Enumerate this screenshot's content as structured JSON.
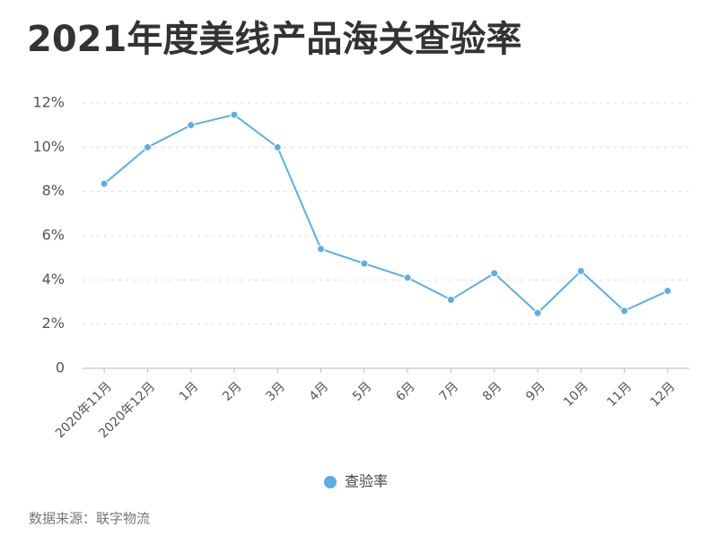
{
  "chart_data": {
    "type": "line",
    "title": "2021年度美线产品海关查验率",
    "categories": [
      "2020年11月",
      "2020年12月",
      "1月",
      "2月",
      "3月",
      "4月",
      "5月",
      "6月",
      "7月",
      "8月",
      "9月",
      "10月",
      "11月",
      "12月"
    ],
    "series": [
      {
        "name": "查验率",
        "color": "#5aaee8",
        "values": [
          8.35,
          10.0,
          11.0,
          11.47,
          10.0,
          5.4,
          4.74,
          4.1,
          3.1,
          4.3,
          2.5,
          4.4,
          2.6,
          3.5
        ]
      }
    ],
    "ylim": [
      0,
      12
    ],
    "yticks": [
      0,
      {
        "value": 2,
        "label": "2%"
      },
      {
        "value": 4,
        "label": "4%"
      },
      {
        "value": 6,
        "label": "6%"
      },
      {
        "value": 8,
        "label": "8%"
      },
      {
        "value": 10,
        "label": "10%"
      },
      {
        "value": 12,
        "label": "12%"
      }
    ],
    "grid": true,
    "source": "数据来源：联字物流"
  }
}
